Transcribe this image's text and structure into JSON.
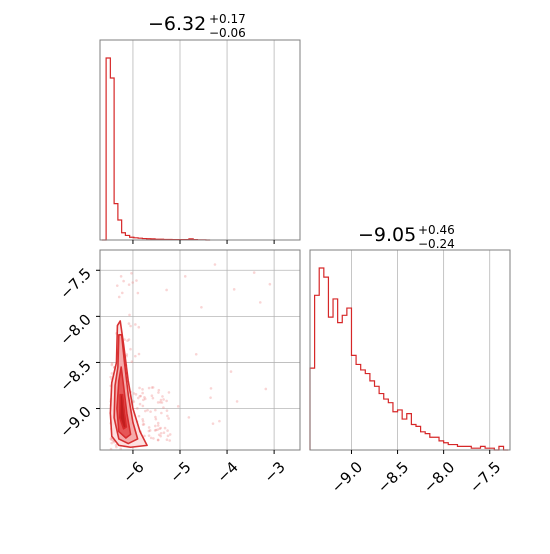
{
  "chart_data": [
    {
      "type": "histogram",
      "panel": "top-left",
      "title": {
        "value": "−6.32",
        "plus": "+0.17",
        "minus": "−0.06"
      },
      "xlim": [
        -6.7,
        -2.45
      ],
      "xticks": [
        -6,
        -5,
        -4,
        -3
      ],
      "grid": true,
      "color": "#d62728",
      "bin_edges": [
        -6.66,
        -6.57,
        -6.48,
        -6.4,
        -6.32,
        -6.24,
        -6.16,
        -6.07,
        -5.98,
        -5.89,
        -5.8,
        -5.71,
        -5.62,
        -5.53,
        -5.44,
        -5.35,
        -5.26,
        -5.17,
        -5.08,
        -4.99,
        -4.9,
        -4.81,
        -4.72,
        -4.63,
        -4.54,
        -4.45,
        -4.36
      ],
      "counts": [
        0,
        1.0,
        0.89,
        0.2,
        0.11,
        0.04,
        0.025,
        0.015,
        0.012,
        0.01,
        0.008,
        0.007,
        0.006,
        0.004,
        0.004,
        0.003,
        0.003,
        0.002,
        0.002,
        0.002,
        0.002,
        0.006,
        0.002,
        0.001,
        0.001,
        0
      ]
    },
    {
      "type": "histogram",
      "panel": "bottom-right",
      "title": {
        "value": "−9.05",
        "plus": "+0.46",
        "minus": "−0.24"
      },
      "xlim": [
        -9.45,
        -7.28
      ],
      "xticks": [
        -9.0,
        -8.5,
        -8.0,
        -7.5
      ],
      "xticklabels": [
        "−9.0",
        "−8.5",
        "−8.0",
        "−7.5"
      ],
      "grid": true,
      "color": "#d62728",
      "bin_edges": [
        -9.45,
        -9.4,
        -9.35,
        -9.3,
        -9.25,
        -9.2,
        -9.15,
        -9.1,
        -9.05,
        -9.0,
        -8.95,
        -8.9,
        -8.85,
        -8.8,
        -8.75,
        -8.7,
        -8.65,
        -8.6,
        -8.55,
        -8.5,
        -8.45,
        -8.4,
        -8.35,
        -8.3,
        -8.25,
        -8.2,
        -8.15,
        -8.1,
        -8.05,
        -8.0,
        -7.95,
        -7.9,
        -7.85,
        -7.8,
        -7.75,
        -7.7,
        -7.65,
        -7.6,
        -7.55,
        -7.5,
        -7.45,
        -7.4,
        -7.35,
        -7.3
      ],
      "counts": [
        0.45,
        0.85,
        1.0,
        0.95,
        0.73,
        0.83,
        0.7,
        0.74,
        0.78,
        0.52,
        0.47,
        0.44,
        0.42,
        0.38,
        0.35,
        0.31,
        0.28,
        0.26,
        0.21,
        0.22,
        0.17,
        0.2,
        0.14,
        0.13,
        0.1,
        0.09,
        0.07,
        0.07,
        0.05,
        0.04,
        0.03,
        0.03,
        0.02,
        0.02,
        0.02,
        0.01,
        0.01,
        0.02,
        0.01,
        0.01,
        0.0,
        0.02,
        0.0
      ]
    },
    {
      "type": "contour-scatter",
      "panel": "bottom-left",
      "xlim": [
        -6.7,
        -2.45
      ],
      "ylim": [
        -9.45,
        -7.28
      ],
      "xticks": [
        -6,
        -5,
        -4,
        -3
      ],
      "yticks": [
        -7.5,
        -8.0,
        -8.5,
        -9.0
      ],
      "yticklabels": [
        "−7.5",
        "−8.0",
        "−8.5",
        "−9.0"
      ],
      "grid": true,
      "color": "#d62728",
      "contour_levels": [
        {
          "fill": "#fde0e0",
          "points": [
            [
              -6.05,
              -9.42
            ],
            [
              -6.3,
              -9.4
            ],
            [
              -6.45,
              -9.3
            ],
            [
              -6.48,
              -9.05
            ],
            [
              -6.45,
              -8.72
            ],
            [
              -6.35,
              -8.5
            ],
            [
              -6.33,
              -8.1
            ],
            [
              -6.27,
              -8.05
            ],
            [
              -6.2,
              -8.3
            ],
            [
              -6.1,
              -8.7
            ],
            [
              -6.0,
              -9.0
            ],
            [
              -5.85,
              -9.25
            ],
            [
              -5.7,
              -9.4
            ]
          ]
        },
        {
          "fill": "#f5a8a8",
          "points": [
            [
              -6.1,
              -9.38
            ],
            [
              -6.3,
              -9.33
            ],
            [
              -6.4,
              -9.1
            ],
            [
              -6.38,
              -8.75
            ],
            [
              -6.32,
              -8.55
            ],
            [
              -6.3,
              -8.2
            ],
            [
              -6.24,
              -8.2
            ],
            [
              -6.18,
              -8.5
            ],
            [
              -6.1,
              -8.85
            ],
            [
              -6.0,
              -9.15
            ],
            [
              -5.9,
              -9.33
            ]
          ]
        },
        {
          "fill": "#e65353",
          "points": [
            [
              -6.15,
              -9.32
            ],
            [
              -6.3,
              -9.25
            ],
            [
              -6.34,
              -9.0
            ],
            [
              -6.3,
              -8.7
            ],
            [
              -6.25,
              -8.55
            ],
            [
              -6.2,
              -8.75
            ],
            [
              -6.13,
              -9.05
            ],
            [
              -6.05,
              -9.28
            ]
          ]
        },
        {
          "fill": "#c01c1c",
          "points": [
            [
              -6.2,
              -9.22
            ],
            [
              -6.28,
              -9.1
            ],
            [
              -6.27,
              -8.85
            ],
            [
              -6.22,
              -8.85
            ],
            [
              -6.18,
              -9.05
            ],
            [
              -6.14,
              -9.2
            ]
          ]
        }
      ]
    }
  ]
}
